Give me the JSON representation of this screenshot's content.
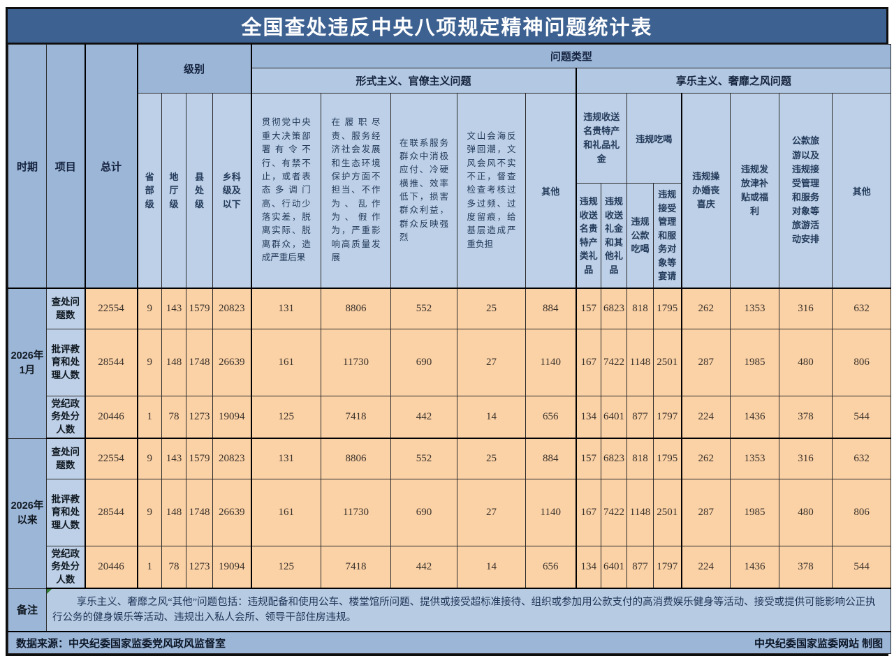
{
  "title": "全国查处违反中央八项规定精神问题统计表",
  "header": {
    "period_label": "时期",
    "item_label": "项目",
    "problem_type": "问题类型",
    "level_group": "级别",
    "formalism_group": "形式主义、官僚主义问题",
    "hedonism_group": "享乐主义、奢靡之风问题",
    "gifts_group": "违规收送名贵特产和礼品礼金",
    "dining_group": "违规吃喝"
  },
  "chart_data": {
    "type": "table",
    "title": "全国查处违反中央八项规定精神问题统计表",
    "row_dimensions": [
      "时期",
      "项目"
    ],
    "column_groups": {
      "级别": [
        "省部级",
        "地厅级",
        "县处级",
        "乡科级及以下"
      ],
      "问题类型/形式主义、官僚主义问题": [
        "贯彻党中央重大决策部署有令不行、有禁不止，或者表态多调门高、行动少落实差，脱离实际、脱离群众，造成严重后果",
        "在履职尽责、服务经济社会发展和生态环境保护方面不担当、不作为、乱作为、假作为，严重影响高质量发展",
        "在联系服务群众中消极应付、冷硬横推、效率低下，损害群众利益，群众反映强烈",
        "文山会海反弹回潮，文风会风不实不正，督查检查考核过多过频、过度留痕，给基层造成严重负担",
        "其他"
      ],
      "问题类型/享乐主义、奢靡之风问题": [
        "违规收送名贵特产类礼品",
        "违规收送礼金和其他礼品",
        "违规公款吃喝",
        "违规接受管理和服务对象等宴请",
        "违规操办婚丧喜庆",
        "违规发放津补贴或福利",
        "公款旅游以及违规接受管理和服务对象等旅游活动安排",
        "其他"
      ]
    },
    "columns": [
      "总计",
      "省部级",
      "地厅级",
      "县处级",
      "乡科级及以下",
      "贯彻党中央重大决策部署有令不行、有禁不止，或者表态多调门高、行动少落实差，脱离实际、脱离群众，造成严重后果",
      "在履职尽责、服务经济社会发展和生态环境保护方面不担当、不作为、乱作为、假作为，严重影响高质量发展",
      "在联系服务群众中消极应付、冷硬横推、效率低下，损害群众利益，群众反映强烈",
      "文山会海反弹回潮，文风会风不实不正，督查检查考核过多过频、过度留痕，给基层造成严重负担",
      "其他",
      "违规收送名贵特产类礼品",
      "违规收送礼金和其他礼品",
      "违规公款吃喝",
      "违规接受管理和服务对象等宴请",
      "违规操办婚丧喜庆",
      "违规发放津补贴或福利",
      "公款旅游以及违规接受管理和服务对象等旅游活动安排",
      "其他"
    ],
    "rows": [
      {
        "period": "2026年1月",
        "item": "查处问题数",
        "values": [
          22554,
          9,
          143,
          1579,
          20823,
          131,
          8806,
          552,
          25,
          884,
          157,
          6823,
          818,
          1795,
          262,
          1353,
          316,
          632
        ]
      },
      {
        "period": "2026年1月",
        "item": "批评教育和处理人数",
        "values": [
          28544,
          9,
          148,
          1748,
          26639,
          161,
          11730,
          690,
          27,
          1140,
          167,
          7422,
          1148,
          2501,
          287,
          1985,
          480,
          806
        ]
      },
      {
        "period": "2026年1月",
        "item": "党纪政务处分人数",
        "values": [
          20446,
          1,
          78,
          1273,
          19094,
          125,
          7418,
          442,
          14,
          656,
          134,
          6401,
          877,
          1797,
          224,
          1436,
          378,
          544
        ]
      },
      {
        "period": "2026年以来",
        "item": "查处问题数",
        "values": [
          22554,
          9,
          143,
          1579,
          20823,
          131,
          8806,
          552,
          25,
          884,
          157,
          6823,
          818,
          1795,
          262,
          1353,
          316,
          632
        ]
      },
      {
        "period": "2026年以来",
        "item": "批评教育和处理人数",
        "values": [
          28544,
          9,
          148,
          1748,
          26639,
          161,
          11730,
          690,
          27,
          1140,
          167,
          7422,
          1148,
          2501,
          287,
          1985,
          480,
          806
        ]
      },
      {
        "period": "2026年以来",
        "item": "党纪政务处分人数",
        "values": [
          20446,
          1,
          78,
          1273,
          19094,
          125,
          7418,
          442,
          14,
          656,
          134,
          6401,
          877,
          1797,
          224,
          1436,
          378,
          544
        ]
      }
    ]
  },
  "notes": {
    "label": "备注",
    "text": "享乐主义、奢靡之风“其他”问题包括：违规配备和使用公车、楼堂馆所问题、提供或接受超标准接待、组织或参加用公款支付的高消费娱乐健身等活动、接受或提供可能影响公正执行公务的健身娱乐等活动、违规出入私人会所、领导干部住房违规。",
    "comment_marker_color": "#2e7d32"
  },
  "footer": {
    "source": "数据来源：中央纪委国家监委党风政风监督室",
    "credit": "中央纪委国家监委网站 制图"
  },
  "colors": {
    "title_bar": "#3d6191",
    "medium_blue": "#9cb6d8",
    "group_blue": "#b3c8e2",
    "leaf_blue": "#bdd0e7",
    "data_peach": "#fbd1a6",
    "border": "#0e0e0e"
  }
}
